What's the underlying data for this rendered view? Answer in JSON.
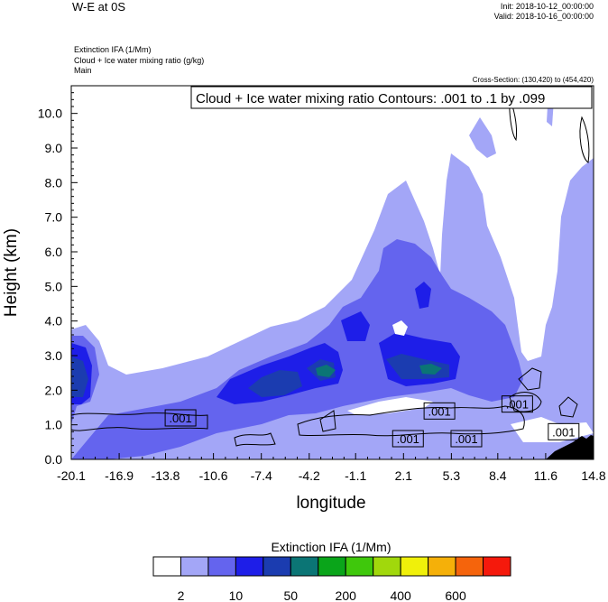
{
  "header": {
    "title": "W-E at 0S",
    "init": "Init: 2018-10-12_00:00:00",
    "valid": "Valid: 2018-10-16_00:00:00",
    "field1": "Extinction IFA   (1/Mm)",
    "field2": "Cloud + Ice water mixing ratio   (g/kg)",
    "field3": "Main",
    "cross_section": "Cross-Section: (130,420) to (454,420)"
  },
  "chart_data": {
    "type": "heatmap",
    "xlabel": "longitude",
    "ylabel": "Height (km)",
    "x_ticks": [
      "-20.1",
      "-16.9",
      "-13.8",
      "-10.6",
      "-7.4",
      "-4.2",
      "-1.1",
      "2.1",
      "5.3",
      "8.4",
      "11.6",
      "14.8"
    ],
    "y_ticks": [
      "0.0",
      "1.0",
      "2.0",
      "3.0",
      "4.0",
      "5.0",
      "6.0",
      "7.0",
      "8.0",
      "9.0",
      "10.0"
    ],
    "xlim": [
      -20.1,
      14.8
    ],
    "ylim": [
      0.0,
      10.8
    ],
    "contour_box": "Cloud + Ice water mixing ratio Contours: .001 to .1 by .099",
    "contour_labels": [
      {
        "text": ".001",
        "x": -12.8,
        "y": 1.2
      },
      {
        "text": ".001",
        "x": 4.5,
        "y": 1.4
      },
      {
        "text": ".001",
        "x": 2.4,
        "y": 0.6
      },
      {
        "text": ".001",
        "x": 6.3,
        "y": 0.6
      },
      {
        "text": ".001",
        "x": 9.7,
        "y": 1.6
      },
      {
        "text": ".001",
        "x": 12.8,
        "y": 0.8
      }
    ],
    "colorbar": {
      "title": "Extinction IFA  (1/Mm)",
      "colors": [
        "#ffffff",
        "#a3a6f7",
        "#6464ee",
        "#1e1ee8",
        "#1b3cb0",
        "#0b7575",
        "#0aa51a",
        "#3fc80c",
        "#a1d80c",
        "#f0f00a",
        "#f5b009",
        "#f5640c",
        "#f5190c"
      ],
      "labels": [
        "2",
        "10",
        "50",
        "200",
        "400",
        "600"
      ]
    },
    "colors": {
      "light": "#a3a6f7",
      "mid": "#6464ee",
      "blue": "#1e1ee8",
      "dark": "#1b3cb0",
      "teal": "#0b7575"
    }
  }
}
